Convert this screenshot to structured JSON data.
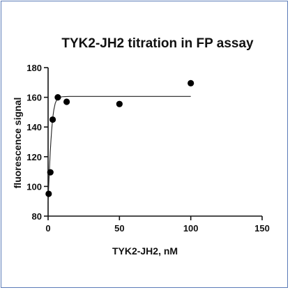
{
  "chart_data": {
    "type": "scatter",
    "title": "TYK2-JH2 titration in FP assay",
    "xlabel": "TYK2-JH2, nM",
    "ylabel": "fluorescence signal",
    "xlim": [
      0,
      150
    ],
    "ylim": [
      80,
      180
    ],
    "xticks": [
      0,
      50,
      100,
      150
    ],
    "yticks": [
      80,
      100,
      120,
      140,
      160,
      180
    ],
    "grid": false,
    "points": [
      {
        "x": 0.4,
        "y": 95
      },
      {
        "x": 1.6,
        "y": 109.5
      },
      {
        "x": 3.2,
        "y": 145
      },
      {
        "x": 6.8,
        "y": 160
      },
      {
        "x": 13,
        "y": 157
      },
      {
        "x": 50,
        "y": 155.5
      },
      {
        "x": 100,
        "y": 169.5
      }
    ],
    "fit_curve": {
      "x": [
        0,
        0.5,
        1,
        1.5,
        2,
        2.5,
        3,
        3.5,
        4,
        5,
        6,
        7,
        8,
        10,
        12,
        15,
        20,
        30,
        50,
        75,
        100
      ],
      "y": [
        90,
        102,
        113,
        123,
        131,
        138,
        143.5,
        148,
        151.5,
        156,
        158.2,
        159.4,
        160,
        160.4,
        160.5,
        160.6,
        160.6,
        160.6,
        160.6,
        160.6,
        160.6
      ]
    }
  }
}
